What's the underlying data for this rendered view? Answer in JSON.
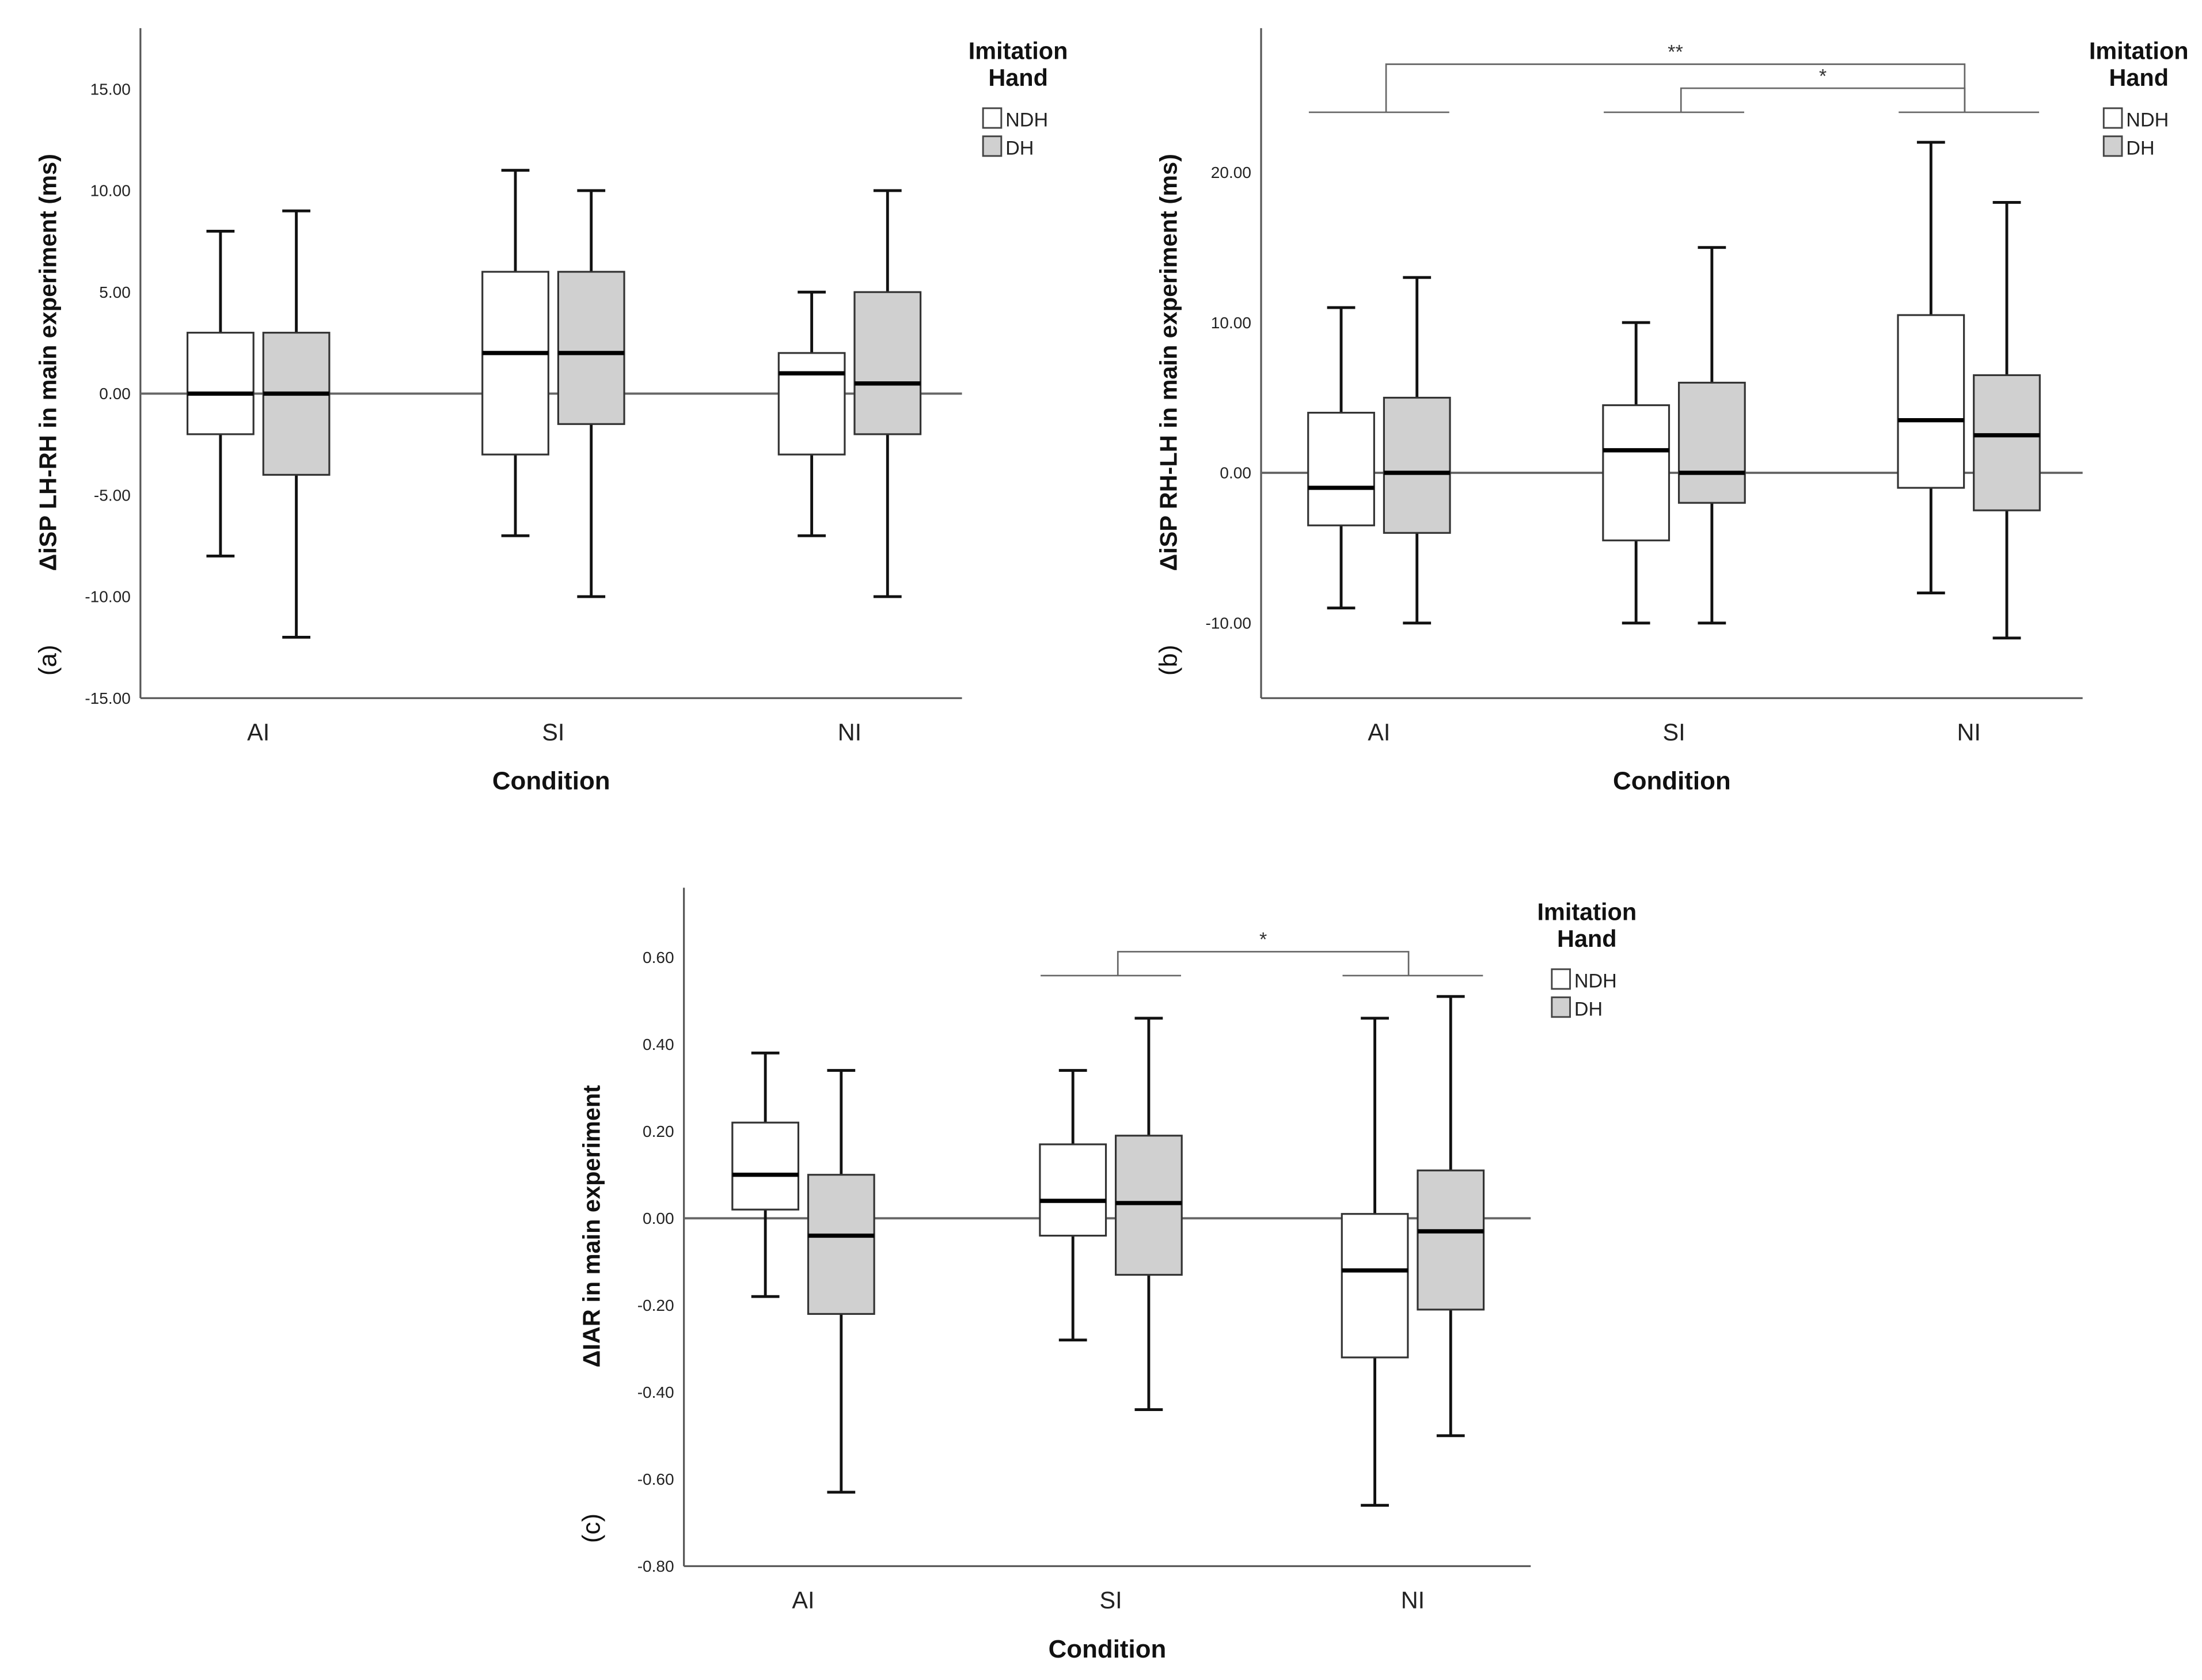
{
  "chart_data": [
    {
      "type": "box",
      "panel_label": "(a)",
      "ylabel": "ΔiSP LH-RH in main experiment (ms)",
      "xlabel": "Condition",
      "categories": [
        "AI",
        "SI",
        "NI"
      ],
      "ylim": [
        -15,
        18
      ],
      "yticks": [
        15,
        10,
        5,
        0,
        -5,
        -10,
        -15
      ],
      "tick_decimals": 2,
      "reference_line": 0,
      "legend": {
        "title_line1": "Imitation",
        "title_line2": "Hand",
        "position": "top-right",
        "entries": [
          "NDH",
          "DH"
        ]
      },
      "series": [
        {
          "name": "NDH",
          "color": "#ffffff",
          "boxes": [
            {
              "min": -8,
              "q1": -2,
              "median": 0,
              "q3": 3,
              "max": 8
            },
            {
              "min": -7,
              "q1": -3,
              "median": 2,
              "q3": 6,
              "max": 11
            },
            {
              "min": -7,
              "q1": -3,
              "median": 1,
              "q3": 2,
              "max": 5
            }
          ]
        },
        {
          "name": "DH",
          "color": "#d0d0d0",
          "boxes": [
            {
              "min": -12,
              "q1": -4,
              "median": 0,
              "q3": 3,
              "max": 9
            },
            {
              "min": -10,
              "q1": -1.5,
              "median": 2,
              "q3": 6,
              "max": 10
            },
            {
              "min": -10,
              "q1": -2,
              "median": 0.5,
              "q3": 5,
              "max": 10
            }
          ]
        }
      ],
      "significance": []
    },
    {
      "type": "box",
      "panel_label": "(b)",
      "ylabel": "ΔiSP RH-LH in main experiment (ms)",
      "xlabel": "Condition",
      "categories": [
        "AI",
        "SI",
        "NI"
      ],
      "ylim": [
        -15,
        29.6
      ],
      "yticks": [
        20,
        10,
        0,
        -10
      ],
      "tick_decimals": 2,
      "reference_line": 0,
      "legend": {
        "title_line1": "Imitation",
        "title_line2": "Hand",
        "position": "top-right",
        "entries": [
          "NDH",
          "DH"
        ]
      },
      "series": [
        {
          "name": "NDH",
          "color": "#ffffff",
          "boxes": [
            {
              "min": -9,
              "q1": -3.5,
              "median": -1,
              "q3": 4,
              "max": 11
            },
            {
              "min": -10,
              "q1": -4.5,
              "median": 1.5,
              "q3": 4.5,
              "max": 10
            },
            {
              "min": -8,
              "q1": -1,
              "median": 3.5,
              "q3": 10.5,
              "max": 22
            }
          ]
        },
        {
          "name": "DH",
          "color": "#d0d0d0",
          "boxes": [
            {
              "min": -10,
              "q1": -4,
              "median": 0,
              "q3": 5,
              "max": 13
            },
            {
              "min": -10,
              "q1": -2,
              "median": 0,
              "q3": 6,
              "max": 15
            },
            {
              "min": -11,
              "q1": -2.5,
              "median": 2.5,
              "q3": 6.5,
              "max": 18
            }
          ]
        }
      ],
      "significance": [
        {
          "from": "AI",
          "to": "NI",
          "label": "**",
          "base": 24,
          "top": 27.2
        },
        {
          "from": "SI",
          "to": "NI",
          "label": "*",
          "base": 24,
          "top": 25.6
        }
      ]
    },
    {
      "type": "box",
      "panel_label": "(c)",
      "ylabel": "ΔIAR in main experiment",
      "xlabel": "Condition",
      "categories": [
        "AI",
        "SI",
        "NI"
      ],
      "ylim": [
        -0.8,
        0.76
      ],
      "yticks": [
        0.6,
        0.4,
        0.2,
        0,
        -0.2,
        -0.4,
        -0.6,
        -0.8
      ],
      "tick_decimals": 2,
      "reference_line": 0,
      "legend": {
        "title_line1": "Imitation",
        "title_line2": "Hand",
        "position": "top-right",
        "entries": [
          "NDH",
          "DH"
        ]
      },
      "series": [
        {
          "name": "NDH",
          "color": "#ffffff",
          "boxes": [
            {
              "min": -0.18,
              "q1": 0.02,
              "median": 0.1,
              "q3": 0.22,
              "max": 0.38
            },
            {
              "min": -0.28,
              "q1": -0.04,
              "median": 0.04,
              "q3": 0.17,
              "max": 0.34
            },
            {
              "min": -0.66,
              "q1": -0.32,
              "median": -0.12,
              "q3": 0.01,
              "max": 0.46
            }
          ]
        },
        {
          "name": "DH",
          "color": "#d0d0d0",
          "boxes": [
            {
              "min": -0.63,
              "q1": -0.22,
              "median": -0.04,
              "q3": 0.1,
              "max": 0.34
            },
            {
              "min": -0.44,
              "q1": -0.13,
              "median": 0.035,
              "q3": 0.19,
              "max": 0.46
            },
            {
              "min": -0.5,
              "q1": -0.21,
              "median": -0.03,
              "q3": 0.11,
              "max": 0.51
            }
          ]
        }
      ],
      "significance": [
        {
          "from": "SI",
          "to": "NI",
          "label": "*",
          "base": 0.558,
          "top": 0.613
        }
      ]
    }
  ]
}
